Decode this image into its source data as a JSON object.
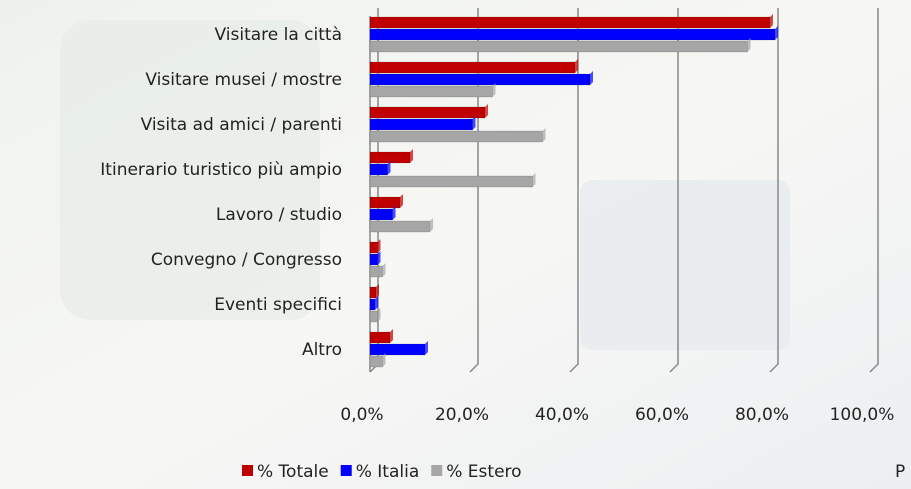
{
  "chart_data": {
    "type": "bar",
    "orientation": "horizontal",
    "categories": [
      "Visitare la città",
      "Visitare musei / mostre",
      "Visita ad amici / parenti",
      "Itinerario turistico più ampio",
      "Lavoro / studio",
      "Convegno / Congresso",
      "Eventi specifici",
      "Altro"
    ],
    "series": [
      {
        "name": "% Totale",
        "color": "#c00000",
        "values": [
          80,
          41,
          23,
          8,
          6,
          1.5,
          1.2,
          4
        ]
      },
      {
        "name": "% Italia",
        "color": "#0000ff",
        "values": [
          81,
          44,
          20.5,
          3.5,
          4.5,
          1.5,
          1,
          11
        ]
      },
      {
        "name": "% Estero",
        "color": "#a6a6a6",
        "values": [
          75.5,
          24.5,
          34.5,
          32.5,
          12,
          2.5,
          1.5,
          2.5
        ]
      }
    ],
    "xlim": [
      0,
      100
    ],
    "xticks": [
      {
        "value": 0,
        "label": "0,0%"
      },
      {
        "value": 20,
        "label": "20,0%"
      },
      {
        "value": 40,
        "label": "40,0%"
      },
      {
        "value": 60,
        "label": "60,0%"
      },
      {
        "value": 80,
        "label": "80,0%"
      },
      {
        "value": 100,
        "label": "100,0%"
      }
    ],
    "grid": true,
    "legend": "bottom",
    "extra_text": "P"
  }
}
